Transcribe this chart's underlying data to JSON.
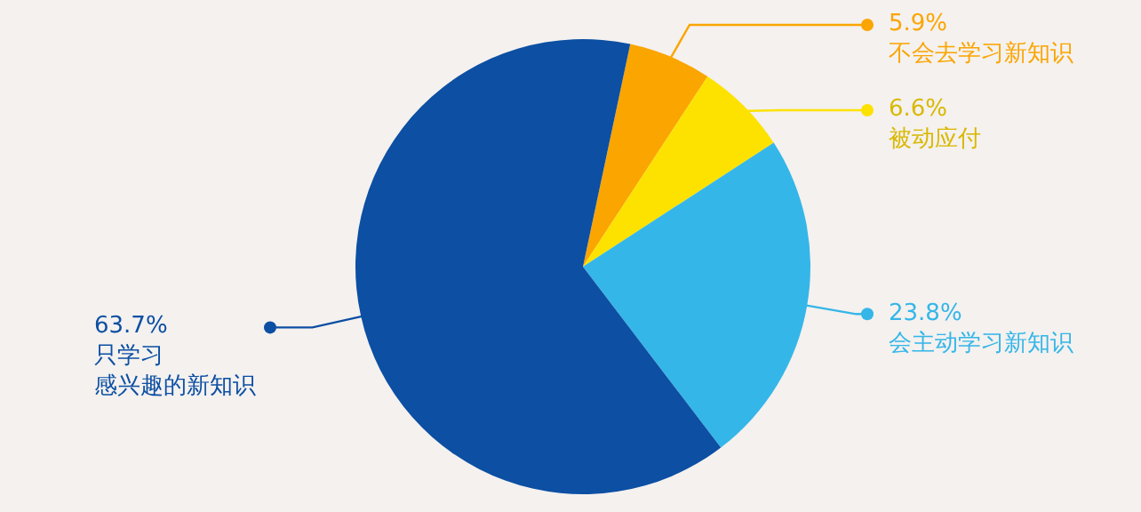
{
  "chart_data": {
    "type": "pie",
    "categories": [
      "不会去学习新知识",
      "被动应付",
      "会主动学习新知识",
      "只学习感兴趣的新知识"
    ],
    "legend": "right",
    "values": [
      5.9,
      6.6,
      23.8,
      63.7
    ],
    "value_labels": [
      "5.9%",
      "6.6%",
      "23.8%",
      "63.7%"
    ],
    "colors": [
      "#fba500",
      "#fde200",
      "#35b6e8",
      "#0c4fa3"
    ]
  }
}
